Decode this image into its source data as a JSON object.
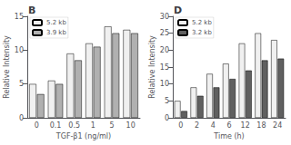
{
  "chart_data": [
    {
      "type": "bar",
      "title": "B",
      "xlabel": "TGF-β1 (ng/ml)",
      "ylabel": "Relative Intensity",
      "categories": [
        "0",
        "0.1",
        "0.5",
        "1",
        "5",
        "10"
      ],
      "series": [
        {
          "name": "5.2 kb",
          "color": "#f0f0f0",
          "values": [
            5.0,
            5.5,
            9.5,
            11.0,
            13.5,
            13.0
          ]
        },
        {
          "name": "3.9 kb",
          "color": "#b0b0b0",
          "values": [
            3.5,
            5.0,
            8.5,
            10.5,
            12.5,
            12.5
          ]
        }
      ],
      "ylim": [
        0,
        15
      ],
      "yticks": [
        0,
        5,
        10,
        15
      ],
      "grid": false,
      "legend": "upper left"
    },
    {
      "type": "bar",
      "title": "D",
      "xlabel": "Time (h)",
      "ylabel": "Relative Intensity",
      "categories": [
        "0",
        "2",
        "4",
        "6",
        "12",
        "18",
        "24"
      ],
      "series": [
        {
          "name": "5.2 kb",
          "color": "#f0f0f0",
          "values": [
            5.0,
            9.0,
            13.0,
            16.0,
            22.0,
            25.0,
            23.0
          ]
        },
        {
          "name": "3.2 kb",
          "color": "#606060",
          "values": [
            2.0,
            6.5,
            9.0,
            11.5,
            14.0,
            17.0,
            17.5
          ]
        }
      ],
      "ylim": [
        0,
        30
      ],
      "yticks": [
        0,
        5,
        10,
        15,
        20,
        25,
        30
      ],
      "grid": false,
      "legend": "upper left"
    }
  ]
}
